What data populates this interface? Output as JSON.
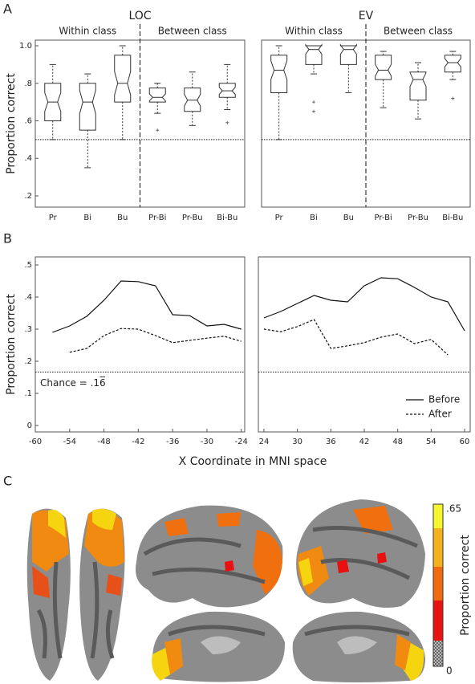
{
  "chart_data": [
    {
      "type": "box",
      "panel": "A",
      "title": "LOC",
      "ylabel": "Proportion correct",
      "groups": [
        "Within class",
        "Between class"
      ],
      "categories": [
        "Pr",
        "Bi",
        "Bu",
        "Pr-Bi",
        "Pr-Bu",
        "Bi-Bu"
      ],
      "boxes": [
        {
          "min": 0.5,
          "q1": 0.6,
          "median": 0.7,
          "q3": 0.8,
          "max": 0.9,
          "outliers": []
        },
        {
          "min": 0.35,
          "q1": 0.55,
          "median": 0.7,
          "q3": 0.8,
          "max": 0.85,
          "outliers": []
        },
        {
          "min": 0.5,
          "q1": 0.7,
          "median": 0.8,
          "q3": 0.95,
          "max": 1.0,
          "outliers": []
        },
        {
          "min": 0.64,
          "q1": 0.7,
          "median": 0.725,
          "q3": 0.775,
          "max": 0.8,
          "outliers": [
            0.55
          ]
        },
        {
          "min": 0.575,
          "q1": 0.65,
          "median": 0.71,
          "q3": 0.775,
          "max": 0.86,
          "outliers": []
        },
        {
          "min": 0.66,
          "q1": 0.725,
          "median": 0.76,
          "q3": 0.8,
          "max": 0.9,
          "outliers": [
            0.59
          ]
        }
      ],
      "chance": 0.5,
      "ylim": [
        0.14,
        1.03
      ],
      "yticks": [
        {
          "value": 0.2,
          "label": ".2"
        },
        {
          "value": 0.4,
          "label": ".4"
        },
        {
          "value": 0.6,
          "label": ".6"
        },
        {
          "value": 0.8,
          "label": ".8"
        },
        {
          "value": 1.0,
          "label": "1.0"
        }
      ]
    },
    {
      "type": "box",
      "title": "EV",
      "groups": [
        "Within class",
        "Between class"
      ],
      "categories": [
        "Pr",
        "Bi",
        "Bu",
        "Pr-Bi",
        "Pr-Bu",
        "Bi-Bu"
      ],
      "boxes": [
        {
          "min": 0.5,
          "q1": 0.75,
          "median": 0.87,
          "q3": 0.95,
          "max": 1.0,
          "outliers": []
        },
        {
          "min": 0.85,
          "q1": 0.9,
          "median": 0.98,
          "q3": 1.0,
          "max": 1.0,
          "outliers": [
            0.7,
            0.65
          ]
        },
        {
          "min": 0.75,
          "q1": 0.9,
          "median": 0.98,
          "q3": 1.0,
          "max": 1.0,
          "outliers": []
        },
        {
          "min": 0.67,
          "q1": 0.82,
          "median": 0.87,
          "q3": 0.95,
          "max": 0.97,
          "outliers": []
        },
        {
          "min": 0.61,
          "q1": 0.71,
          "median": 0.82,
          "q3": 0.86,
          "max": 0.91,
          "outliers": []
        },
        {
          "min": 0.82,
          "q1": 0.86,
          "median": 0.91,
          "q3": 0.95,
          "max": 0.97,
          "outliers": [
            0.72
          ]
        }
      ],
      "chance": 0.5,
      "ylim": [
        0.14,
        1.03
      ]
    },
    {
      "type": "line",
      "panel": "B",
      "ylabel": "Proportion correct",
      "xlabel": "X Coordinate in MNI space",
      "x": [
        -57,
        -54,
        -51,
        -48,
        -45,
        -42,
        -39,
        -36,
        -33,
        -30,
        -27,
        -24
      ],
      "series": [
        {
          "name": "Before",
          "style": "solid",
          "color": "#111111",
          "values": [
            0.29,
            0.31,
            0.34,
            0.39,
            0.45,
            0.448,
            0.435,
            0.345,
            0.342,
            0.31,
            0.315,
            0.3
          ]
        },
        {
          "name": "After",
          "style": "dashed",
          "color": "#111111",
          "values": [
            null,
            0.228,
            0.24,
            0.28,
            0.302,
            0.3,
            0.28,
            0.258,
            0.265,
            0.272,
            0.278,
            0.262
          ]
        }
      ],
      "chance": 0.1667,
      "chance_label": "Chance = .16̅",
      "xlim": [
        -60,
        -23.4
      ],
      "xticks": [
        -60,
        -54,
        -48,
        -42,
        -36,
        -30,
        -24
      ],
      "ylim": [
        -0.02,
        0.525
      ],
      "yticks": [
        0,
        {
          "value": 0.1,
          "label": ".1"
        },
        {
          "value": 0.2,
          "label": ".2"
        },
        {
          "value": 0.3,
          "label": ".3"
        },
        {
          "value": 0.4,
          "label": ".4"
        },
        {
          "value": 0.5,
          "label": ".5"
        }
      ]
    },
    {
      "type": "line",
      "x": [
        24,
        27,
        30,
        33,
        36,
        39,
        42,
        45,
        48,
        51,
        54,
        57,
        60
      ],
      "series": [
        {
          "name": "Before",
          "style": "solid",
          "color": "#111111",
          "values": [
            0.335,
            0.355,
            0.38,
            0.405,
            0.39,
            0.385,
            0.435,
            0.46,
            0.457,
            0.43,
            0.4,
            0.385,
            0.295
          ]
        },
        {
          "name": "After",
          "style": "dashed",
          "color": "#111111",
          "values": [
            0.3,
            0.292,
            0.308,
            0.33,
            0.24,
            0.248,
            0.258,
            0.275,
            0.285,
            0.255,
            0.268,
            0.22,
            null
          ]
        }
      ],
      "chance": 0.1667,
      "legend": "lower right",
      "xlim": [
        23,
        61
      ],
      "xticks": [
        24,
        30,
        36,
        42,
        48,
        54,
        60
      ],
      "ylim": [
        -0.02,
        0.525
      ]
    },
    {
      "type": "brain",
      "panel": "C",
      "colorbar_label": "Proportion correct",
      "colorbar_ticks": [
        {
          "value": 0.65,
          "label": ".65"
        },
        0
      ]
    }
  ]
}
